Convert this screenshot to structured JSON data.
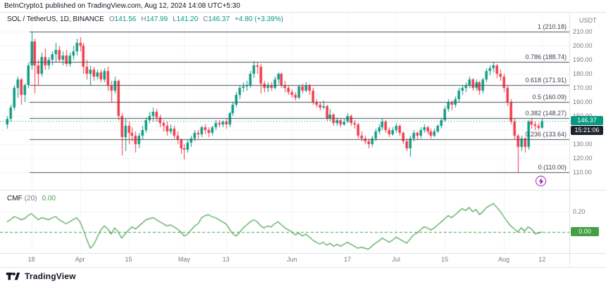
{
  "header": {
    "published": "BeInCrypto1 published on TradingView.com, Aug 12, 2024 14:08 UTC+5:30"
  },
  "symbol": {
    "title": "SOL / TetherUS, 1D, BINANCE",
    "ohlc": {
      "o_label": "O",
      "o": "141.56",
      "h_label": "H",
      "h": "147.99",
      "l_label": "L",
      "l": "141.20",
      "c_label": "C",
      "c": "146.37",
      "change": "+4.80 (+3.39%)"
    }
  },
  "price_axis": {
    "currency": "USDT",
    "ticks": [
      "210.00",
      "200.00",
      "190.00",
      "180.00",
      "170.00",
      "160.00",
      "150.00",
      "140.00",
      "130.00",
      "120.00",
      "110.00"
    ],
    "last_price": "146.37",
    "countdown": "15:21:06"
  },
  "fib": {
    "levels": [
      {
        "ratio": "1",
        "price": 210.18,
        "label": "1 (210.18)"
      },
      {
        "ratio": "0.786",
        "price": 188.74,
        "label": "0.786 (188.74)"
      },
      {
        "ratio": "0.618",
        "price": 171.91,
        "label": "0.618 (171.91)"
      },
      {
        "ratio": "0.5",
        "price": 160.09,
        "label": "0.5 (160.09)"
      },
      {
        "ratio": "0.382",
        "price": 148.27,
        "label": "0.382 (148.27)"
      },
      {
        "ratio": "0.236",
        "price": 133.64,
        "label": "0.236 (133.64)"
      },
      {
        "ratio": "0",
        "price": 110.0,
        "label": "0 (110.00)"
      }
    ]
  },
  "indicator": {
    "name": "CMF",
    "params": "(20)",
    "value": "0.00",
    "axis_tick": "0.20",
    "badge": "0.00"
  },
  "x_axis": {
    "ticks": [
      {
        "label": "18",
        "i": 7
      },
      {
        "label": "Apr",
        "i": 21
      },
      {
        "label": "15",
        "i": 35
      },
      {
        "label": "May",
        "i": 51
      },
      {
        "label": "13",
        "i": 63
      },
      {
        "label": "Jun",
        "i": 82
      },
      {
        "label": "17",
        "i": 98
      },
      {
        "label": "Jul",
        "i": 112
      },
      {
        "label": "15",
        "i": 126
      },
      {
        "label": "Aug",
        "i": 143
      },
      {
        "label": "12",
        "i": 154
      }
    ]
  },
  "marker": {
    "icon": "lightning-icon",
    "color": "#9c27b0"
  },
  "footer": {
    "brand": "TradingView"
  },
  "colors": {
    "up": "#089981",
    "down": "#F23645",
    "cmf_line": "#43a047",
    "fib_line": "#4a4f5a",
    "grid": "#f0f3fa",
    "axis_text": "#787b86"
  },
  "chart_data": [
    {
      "type": "candlestick",
      "title": "SOL / TetherUS, 1D, BINANCE",
      "symbol": "SOL/USDT",
      "timeframe": "1D",
      "exchange": "BINANCE",
      "start_date": "2024-03-11",
      "end_date": "2024-08-12",
      "ylim": [
        98,
        224
      ],
      "y_ticks": [
        110,
        120,
        130,
        140,
        150,
        160,
        170,
        180,
        190,
        200,
        210
      ],
      "last_close": 146.37,
      "fib_levels": [
        210.18,
        188.74,
        171.91,
        160.09,
        148.27,
        133.64,
        110.0
      ],
      "ohlc": [
        [
          144,
          150,
          141,
          148
        ],
        [
          148,
          158,
          146,
          156
        ],
        [
          156,
          172,
          154,
          170
        ],
        [
          170,
          178,
          163,
          176
        ],
        [
          176,
          177,
          158,
          165
        ],
        [
          165,
          173,
          160,
          172
        ],
        [
          172,
          188,
          170,
          186
        ],
        [
          186,
          210.2,
          183,
          203
        ],
        [
          203,
          205,
          166,
          186
        ],
        [
          186,
          190,
          172,
          180
        ],
        [
          180,
          195,
          178,
          192
        ],
        [
          192,
          198,
          183,
          186
        ],
        [
          186,
          192,
          183,
          190
        ],
        [
          190,
          196,
          186,
          194
        ],
        [
          194,
          202,
          188,
          197
        ],
        [
          197,
          200,
          188,
          190
        ],
        [
          190,
          196,
          186,
          193
        ],
        [
          193,
          197,
          185,
          187
        ],
        [
          187,
          195,
          185,
          193
        ],
        [
          193,
          200,
          190,
          196
        ],
        [
          196,
          205,
          193,
          202
        ],
        [
          202,
          206,
          196,
          200
        ],
        [
          200,
          202,
          180,
          185
        ],
        [
          185,
          190,
          176,
          180
        ],
        [
          180,
          186,
          172,
          183
        ],
        [
          183,
          185,
          175,
          178
        ],
        [
          178,
          183,
          176,
          181
        ],
        [
          181,
          183,
          174,
          176
        ],
        [
          176,
          184,
          174,
          182
        ],
        [
          182,
          185,
          168,
          172
        ],
        [
          172,
          175,
          160,
          168
        ],
        [
          168,
          178,
          166,
          175
        ],
        [
          175,
          176,
          147,
          150
        ],
        [
          150,
          152,
          122,
          135
        ],
        [
          135,
          148,
          125,
          143
        ],
        [
          143,
          146,
          130,
          138
        ],
        [
          138,
          142,
          132,
          136
        ],
        [
          136,
          139,
          124,
          130
        ],
        [
          130,
          138,
          127,
          136
        ],
        [
          136,
          143,
          133,
          140
        ],
        [
          140,
          149,
          138,
          147
        ],
        [
          147,
          153,
          145,
          150
        ],
        [
          150,
          156,
          146,
          153
        ],
        [
          153,
          155,
          146,
          149
        ],
        [
          149,
          151,
          142,
          145
        ],
        [
          145,
          147,
          139,
          143
        ],
        [
          143,
          146,
          136,
          139
        ],
        [
          139,
          144,
          137,
          141
        ],
        [
          141,
          143,
          134,
          136
        ],
        [
          136,
          139,
          130,
          133
        ],
        [
          133,
          134,
          123,
          127
        ],
        [
          127,
          130,
          119,
          126
        ],
        [
          126,
          133,
          124,
          131
        ],
        [
          131,
          136,
          128,
          134
        ],
        [
          134,
          140,
          132,
          138
        ],
        [
          138,
          140,
          134,
          137
        ],
        [
          137,
          143,
          135,
          142
        ],
        [
          142,
          144,
          137,
          140
        ],
        [
          140,
          142,
          135,
          138
        ],
        [
          138,
          143,
          136,
          142
        ],
        [
          142,
          147,
          140,
          145
        ],
        [
          145,
          147,
          142,
          144
        ],
        [
          144,
          147,
          142,
          146
        ],
        [
          146,
          148,
          141,
          144
        ],
        [
          144,
          153,
          142,
          152
        ],
        [
          152,
          160,
          150,
          158
        ],
        [
          158,
          167,
          156,
          165
        ],
        [
          165,
          172,
          162,
          170
        ],
        [
          170,
          174,
          167,
          171
        ],
        [
          171,
          175,
          168,
          172
        ],
        [
          172,
          182,
          170,
          180
        ],
        [
          180,
          189,
          177,
          186
        ],
        [
          186,
          188,
          180,
          185
        ],
        [
          185,
          187,
          166,
          173
        ],
        [
          173,
          175,
          167,
          170
        ],
        [
          170,
          174,
          167,
          172
        ],
        [
          172,
          174,
          168,
          170
        ],
        [
          170,
          178,
          169,
          176
        ],
        [
          176,
          181,
          173,
          180
        ],
        [
          180,
          181,
          170,
          172
        ],
        [
          172,
          175,
          167,
          170
        ],
        [
          170,
          172,
          165,
          167
        ],
        [
          167,
          169,
          163,
          165
        ],
        [
          165,
          167,
          161,
          163
        ],
        [
          163,
          172,
          162,
          171
        ],
        [
          171,
          173,
          166,
          168
        ],
        [
          168,
          174,
          167,
          172
        ],
        [
          172,
          173,
          165,
          168
        ],
        [
          168,
          170,
          158,
          160
        ],
        [
          160,
          162,
          156,
          158
        ],
        [
          158,
          160,
          154,
          156
        ],
        [
          156,
          161,
          155,
          157
        ],
        [
          157,
          158,
          146,
          148
        ],
        [
          148,
          155,
          146,
          151
        ],
        [
          151,
          152,
          143,
          145
        ],
        [
          145,
          149,
          143,
          147
        ],
        [
          147,
          148,
          142,
          144
        ],
        [
          144,
          148,
          143,
          146
        ],
        [
          146,
          152,
          145,
          150
        ],
        [
          150,
          151,
          143,
          145
        ],
        [
          145,
          147,
          141,
          144
        ],
        [
          144,
          145,
          134,
          136
        ],
        [
          136,
          139,
          132,
          134
        ],
        [
          134,
          136,
          130,
          132
        ],
        [
          132,
          134,
          127,
          130
        ],
        [
          130,
          136,
          128,
          134
        ],
        [
          134,
          141,
          132,
          139
        ],
        [
          139,
          144,
          137,
          142
        ],
        [
          142,
          148,
          140,
          146
        ],
        [
          146,
          147,
          138,
          140
        ],
        [
          140,
          142,
          135,
          137
        ],
        [
          137,
          142,
          136,
          140
        ],
        [
          140,
          145,
          138,
          143
        ],
        [
          143,
          144,
          136,
          138
        ],
        [
          138,
          139,
          130,
          132
        ],
        [
          132,
          134,
          125,
          127
        ],
        [
          127,
          136,
          121,
          134
        ],
        [
          134,
          140,
          132,
          138
        ],
        [
          138,
          139,
          133,
          136
        ],
        [
          136,
          142,
          134,
          140
        ],
        [
          140,
          144,
          138,
          142
        ],
        [
          142,
          143,
          137,
          139
        ],
        [
          139,
          141,
          134,
          136
        ],
        [
          136,
          141,
          135,
          139
        ],
        [
          139,
          144,
          138,
          143
        ],
        [
          143,
          148,
          141,
          147
        ],
        [
          147,
          157,
          146,
          155
        ],
        [
          155,
          162,
          153,
          160
        ],
        [
          160,
          161,
          154,
          158
        ],
        [
          158,
          164,
          156,
          162
        ],
        [
          162,
          170,
          160,
          168
        ],
        [
          168,
          172,
          165,
          170
        ],
        [
          170,
          174,
          167,
          172
        ],
        [
          172,
          178,
          170,
          176
        ],
        [
          176,
          177,
          168,
          170
        ],
        [
          170,
          176,
          168,
          174
        ],
        [
          174,
          175,
          165,
          168
        ],
        [
          168,
          177,
          166,
          176
        ],
        [
          176,
          184,
          174,
          182
        ],
        [
          182,
          186,
          179,
          184
        ],
        [
          184,
          188.7,
          181,
          186
        ],
        [
          186,
          187,
          177,
          180
        ],
        [
          180,
          183,
          175,
          178
        ],
        [
          178,
          180,
          167,
          170
        ],
        [
          170,
          172,
          157,
          160
        ],
        [
          160,
          162,
          144,
          146
        ],
        [
          146,
          148,
          133,
          136
        ],
        [
          136,
          137,
          110,
          128
        ],
        [
          128,
          136,
          125,
          134
        ],
        [
          134,
          135,
          124,
          128
        ],
        [
          128,
          147,
          126,
          146
        ],
        [
          146,
          148,
          141,
          144
        ],
        [
          144,
          146,
          140,
          143
        ],
        [
          143,
          145,
          140,
          141.6
        ],
        [
          141.56,
          147.99,
          141.2,
          146.37
        ]
      ]
    },
    {
      "type": "line",
      "name": "CMF (20)",
      "ylim": [
        -0.45,
        0.4
      ],
      "y_ticks": [
        0,
        0.2
      ],
      "baseline": 0,
      "values": [
        0.1,
        0.12,
        0.15,
        0.14,
        0.12,
        0.13,
        0.16,
        0.18,
        0.15,
        0.12,
        0.14,
        0.13,
        0.12,
        0.14,
        0.15,
        0.12,
        0.1,
        0.08,
        0.1,
        0.12,
        0.14,
        0.1,
        0.02,
        -0.08,
        -0.16,
        -0.12,
        -0.05,
        0.02,
        0.06,
        0.03,
        -0.02,
        0.04,
        0.0,
        -0.06,
        -0.02,
        0.02,
        0.05,
        0.03,
        0.06,
        0.09,
        0.12,
        0.13,
        0.14,
        0.12,
        0.1,
        0.08,
        0.06,
        0.07,
        0.05,
        0.03,
        0.0,
        -0.04,
        -0.02,
        0.02,
        0.06,
        0.08,
        0.14,
        0.16,
        0.17,
        0.15,
        0.14,
        0.12,
        0.1,
        0.08,
        0.03,
        -0.02,
        -0.04,
        0.0,
        0.04,
        0.07,
        0.1,
        0.12,
        0.1,
        0.06,
        0.04,
        0.06,
        0.05,
        0.08,
        0.1,
        0.07,
        0.04,
        0.02,
        0.0,
        -0.03,
        -0.01,
        -0.04,
        -0.02,
        -0.05,
        -0.08,
        -0.1,
        -0.12,
        -0.1,
        -0.13,
        -0.11,
        -0.14,
        -0.12,
        -0.14,
        -0.12,
        -0.1,
        -0.12,
        -0.14,
        -0.16,
        -0.15,
        -0.16,
        -0.17,
        -0.14,
        -0.11,
        -0.09,
        -0.06,
        -0.08,
        -0.1,
        -0.08,
        -0.05,
        -0.07,
        -0.09,
        -0.11,
        -0.07,
        -0.03,
        -0.01,
        0.02,
        0.05,
        0.04,
        0.02,
        0.04,
        0.07,
        0.1,
        0.13,
        0.16,
        0.14,
        0.17,
        0.2,
        0.23,
        0.21,
        0.24,
        0.2,
        0.22,
        0.17,
        0.2,
        0.24,
        0.26,
        0.28,
        0.24,
        0.2,
        0.15,
        0.1,
        0.06,
        0.03,
        0.0,
        0.04,
        0.01,
        0.05,
        0.03,
        -0.02,
        -0.01,
        0.0
      ]
    }
  ]
}
